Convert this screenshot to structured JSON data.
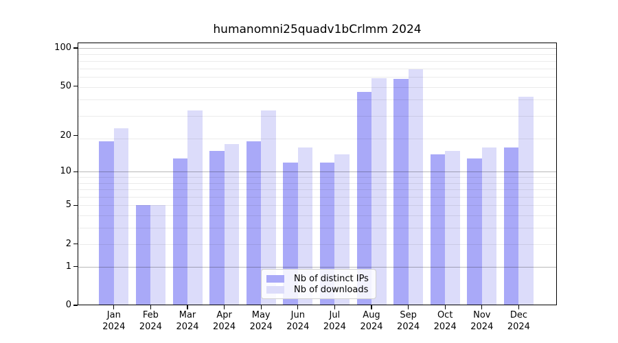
{
  "chart_data": {
    "type": "bar",
    "title": "humanomni25quadv1bCrlmm 2024",
    "categories": [
      "Jan 2024",
      "Feb 2024",
      "Mar 2024",
      "Apr 2024",
      "May 2024",
      "Jun 2024",
      "Jul 2024",
      "Aug 2024",
      "Sep 2024",
      "Oct 2024",
      "Nov 2024",
      "Dec 2024"
    ],
    "series": [
      {
        "name": "Nb of distinct IPs",
        "color": "#a9a9f8",
        "values": [
          18,
          5,
          13,
          15,
          18,
          12,
          12,
          45,
          57,
          14,
          13,
          16
        ]
      },
      {
        "name": "Nb of downloads",
        "color": "#dcdcfa",
        "values": [
          23,
          5,
          32,
          17,
          32,
          16,
          14,
          58,
          68,
          15,
          16,
          41
        ]
      }
    ],
    "yscale": "log1p",
    "y_ticks": [
      100,
      50,
      20,
      10,
      5,
      2,
      1,
      0
    ],
    "ylim": [
      0,
      110
    ],
    "xlabel": "",
    "ylabel": "",
    "grid": "horizontal",
    "legend_position": "lower center"
  },
  "colors": {
    "bar_distinct_ips": "#a9a9f8",
    "bar_downloads": "#dcdcfa",
    "axis": "#000000",
    "major_grid": "#b3b3b3",
    "minor_grid": "#e8e8e8",
    "legend_border": "#cfcfcf"
  }
}
